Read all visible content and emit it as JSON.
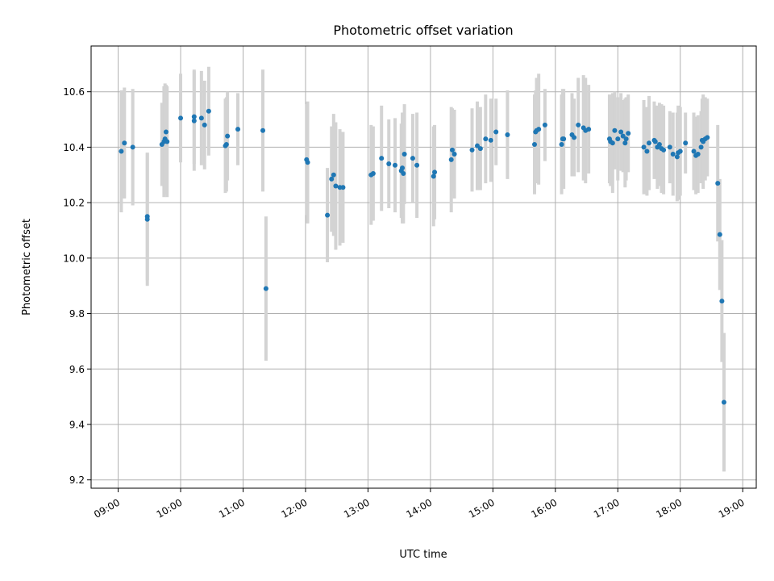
{
  "chart_data": {
    "type": "scatter",
    "title": "Photometric offset variation",
    "xlabel": "UTC time",
    "ylabel": "Photometric offset",
    "x_unit": "UTC time (HH:MM)",
    "xlim": [
      "08:34",
      "19:13"
    ],
    "ylim": [
      9.17,
      10.765
    ],
    "grid": true,
    "x_ticks": [
      "09:00",
      "10:00",
      "11:00",
      "12:00",
      "13:00",
      "14:00",
      "15:00",
      "16:00",
      "17:00",
      "18:00",
      "19:00"
    ],
    "y_ticks": [
      9.2,
      9.4,
      9.6,
      9.8,
      10.0,
      10.2,
      10.4,
      10.6
    ],
    "y_tick_labels": [
      "9.2",
      "9.4",
      "9.6",
      "9.8",
      "10.0",
      "10.2",
      "10.4",
      "10.6"
    ],
    "marker_color": "#1f77b4",
    "errorbar_color": "#d3d3d3",
    "series": [
      {
        "x": [
          "09:03",
          "09:06",
          "09:14",
          "09:28",
          "09:28",
          "09:42",
          "09:44",
          "09:45",
          "09:46",
          "09:47",
          "10:00",
          "10:13",
          "10:13",
          "10:20",
          "10:23",
          "10:27",
          "10:43",
          "10:44",
          "10:45",
          "10:55",
          "11:19",
          "11:22",
          "12:01",
          "12:02",
          "12:21",
          "12:25",
          "12:27",
          "12:29",
          "12:33",
          "12:36",
          "13:03",
          "13:05",
          "13:13",
          "13:20",
          "13:26",
          "13:32",
          "13:33",
          "13:34",
          "13:35",
          "13:43",
          "13:47",
          "14:03",
          "14:04",
          "14:20",
          "14:21",
          "14:23",
          "14:40",
          "14:45",
          "14:48",
          "14:53",
          "14:58",
          "15:03",
          "15:14",
          "15:40",
          "15:41",
          "15:42",
          "15:44",
          "15:50",
          "16:06",
          "16:07",
          "16:08",
          "16:16",
          "16:18",
          "16:22",
          "16:27",
          "16:29",
          "16:32",
          "16:52",
          "16:53",
          "16:55",
          "16:57",
          "17:00",
          "17:03",
          "17:05",
          "17:07",
          "17:08",
          "17:10",
          "17:25",
          "17:28",
          "17:30",
          "17:35",
          "17:36",
          "17:38",
          "17:40",
          "17:42",
          "17:44",
          "17:50",
          "17:53",
          "17:57",
          "17:58",
          "18:00",
          "18:05",
          "18:13",
          "18:15",
          "18:17",
          "18:20",
          "18:21",
          "18:22",
          "18:24",
          "18:26",
          "18:36",
          "18:38",
          "18:40",
          "18:42"
        ],
        "y": [
          10.385,
          10.415,
          10.4,
          10.15,
          10.14,
          10.41,
          10.42,
          10.43,
          10.455,
          10.42,
          10.505,
          10.51,
          10.495,
          10.505,
          10.48,
          10.53,
          10.405,
          10.41,
          10.44,
          10.465,
          10.46,
          9.89,
          10.355,
          10.345,
          10.155,
          10.285,
          10.3,
          10.26,
          10.255,
          10.255,
          10.3,
          10.305,
          10.36,
          10.34,
          10.335,
          10.315,
          10.325,
          10.305,
          10.375,
          10.36,
          10.335,
          10.295,
          10.31,
          10.355,
          10.39,
          10.375,
          10.39,
          10.405,
          10.395,
          10.43,
          10.425,
          10.455,
          10.445,
          10.41,
          10.455,
          10.46,
          10.465,
          10.48,
          10.41,
          10.43,
          10.43,
          10.445,
          10.435,
          10.48,
          10.47,
          10.46,
          10.465,
          10.43,
          10.42,
          10.415,
          10.46,
          10.43,
          10.455,
          10.44,
          10.415,
          10.43,
          10.45,
          10.4,
          10.385,
          10.415,
          10.425,
          10.42,
          10.4,
          10.41,
          10.395,
          10.39,
          10.4,
          10.375,
          10.365,
          10.38,
          10.385,
          10.415,
          10.385,
          10.37,
          10.375,
          10.4,
          10.425,
          10.42,
          10.43,
          10.435,
          10.27,
          10.085,
          9.845,
          9.48
        ],
        "err": [
          0.22,
          0.2,
          0.21,
          0.23,
          0.24,
          0.15,
          0.2,
          0.2,
          0.17,
          0.2,
          0.16,
          0.17,
          0.18,
          0.17,
          0.16,
          0.16,
          0.17,
          0.17,
          0.16,
          0.13,
          0.22,
          0.26,
          0.2,
          0.22,
          0.17,
          0.19,
          0.22,
          0.23,
          0.21,
          0.2,
          0.18,
          0.17,
          0.19,
          0.16,
          0.17,
          0.17,
          0.2,
          0.18,
          0.18,
          0.16,
          0.19,
          0.18,
          0.17,
          0.19,
          0.15,
          0.16,
          0.15,
          0.16,
          0.15,
          0.16,
          0.15,
          0.12,
          0.16,
          0.18,
          0.15,
          0.19,
          0.2,
          0.13,
          0.18,
          0.18,
          0.18,
          0.15,
          0.14,
          0.17,
          0.19,
          0.19,
          0.16,
          0.16,
          0.16,
          0.18,
          0.14,
          0.15,
          0.14,
          0.13,
          0.16,
          0.15,
          0.14,
          0.17,
          0.16,
          0.17,
          0.14,
          0.13,
          0.15,
          0.15,
          0.16,
          0.16,
          0.13,
          0.15,
          0.16,
          0.17,
          0.16,
          0.11,
          0.14,
          0.14,
          0.14,
          0.13,
          0.15,
          0.17,
          0.15,
          0.14,
          0.21,
          0.2,
          0.22,
          0.25
        ]
      }
    ]
  }
}
